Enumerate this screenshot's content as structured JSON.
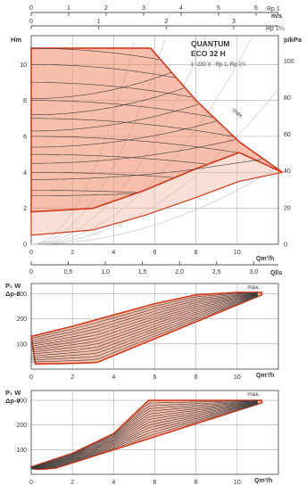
{
  "chart_data": [
    {
      "type": "line",
      "title": "QUANTUM",
      "subtitle": "ECO 32 H",
      "supply": "1~230 V - Rp 1, Rp 1¼",
      "xlabel": "Qm³/h",
      "ylabel": "Hm",
      "y2label": "p/kPa",
      "x_ticks": [
        "0",
        "2",
        "4",
        "6",
        "8",
        "10"
      ],
      "y_ticks": [
        "0",
        "2",
        "4",
        "6",
        "8",
        "10"
      ],
      "y2_ticks": [
        "0",
        "20",
        "40",
        "60",
        "80",
        "100"
      ],
      "top_axis1": {
        "label": "m/s",
        "series_label": "Rp 1",
        "ticks": [
          "0",
          "1",
          "2",
          "3",
          "4",
          "5",
          "6"
        ]
      },
      "top_axis2": {
        "label": "m/s",
        "series_label": "Rp 1¼",
        "ticks": [
          "0",
          "1",
          "2",
          "3"
        ]
      },
      "bottom_axis2": {
        "label": "Ql/s",
        "ticks": [
          "0",
          "0,5",
          "1,0",
          "1,5",
          "2,0",
          "2,5",
          "3,0"
        ]
      },
      "curve_label": "max.",
      "xlim": [
        0,
        12
      ],
      "ylim": [
        0,
        11.6
      ],
      "envelope": {
        "max_curve": [
          [
            0,
            10.9
          ],
          [
            5.8,
            10.9
          ],
          [
            8.0,
            8.0
          ],
          [
            10.1,
            5.7
          ],
          [
            12.2,
            4.0
          ]
        ],
        "min_curve": [
          [
            0,
            1.8
          ],
          [
            3.0,
            2.0
          ],
          [
            5.5,
            3.0
          ],
          [
            8.0,
            4.2
          ],
          [
            10.1,
            5.1
          ],
          [
            12.2,
            4.0
          ]
        ],
        "lower_region": [
          [
            0,
            0.5
          ],
          [
            3.0,
            0.8
          ],
          [
            5.5,
            1.6
          ],
          [
            8.0,
            2.6
          ],
          [
            10.1,
            3.5
          ],
          [
            12.2,
            4.0
          ]
        ]
      },
      "constant_curves_max": [
        10.9,
        10.0,
        9.0,
        8.0,
        7.0,
        6.0,
        5.0,
        4.0,
        3.0
      ],
      "system_curve_coefficients": [
        0.03,
        0.06,
        0.1,
        0.16,
        0.27,
        0.45
      ]
    },
    {
      "type": "line",
      "ylabel": "P₁ W",
      "ylabel2": "Δp-c",
      "xlabel": "Qm³/h",
      "x_ticks": [
        "0",
        "2",
        "4",
        "6",
        "8",
        "10"
      ],
      "y_ticks": [
        "100",
        "200",
        "300"
      ],
      "curve_label": "max.",
      "xlim": [
        0,
        12
      ],
      "ylim": [
        0,
        340
      ],
      "power_max": [
        [
          0,
          130
        ],
        [
          2,
          170
        ],
        [
          4,
          215
        ],
        [
          6,
          260
        ],
        [
          8,
          295
        ],
        [
          10,
          305
        ],
        [
          11.2,
          305
        ]
      ],
      "power_min": [
        [
          0,
          20
        ],
        [
          1.5,
          22
        ],
        [
          3,
          25
        ]
      ],
      "curve_count": 14
    },
    {
      "type": "line",
      "ylabel": "P₁ W",
      "ylabel2": "Δp-v",
      "xlabel": "Qm³/h",
      "x_ticks": [
        "0",
        "2",
        "4",
        "6",
        "8",
        "10"
      ],
      "y_ticks": [
        "100",
        "200",
        "300"
      ],
      "curve_label": "max.",
      "xlim": [
        0,
        12
      ],
      "ylim": [
        0,
        340
      ],
      "power_max": [
        [
          0,
          30
        ],
        [
          2,
          85
        ],
        [
          4,
          165
        ],
        [
          5.7,
          300
        ],
        [
          11.2,
          300
        ]
      ],
      "power_min": [
        [
          0,
          20
        ],
        [
          1,
          22
        ]
      ],
      "curve_count": 14
    }
  ]
}
